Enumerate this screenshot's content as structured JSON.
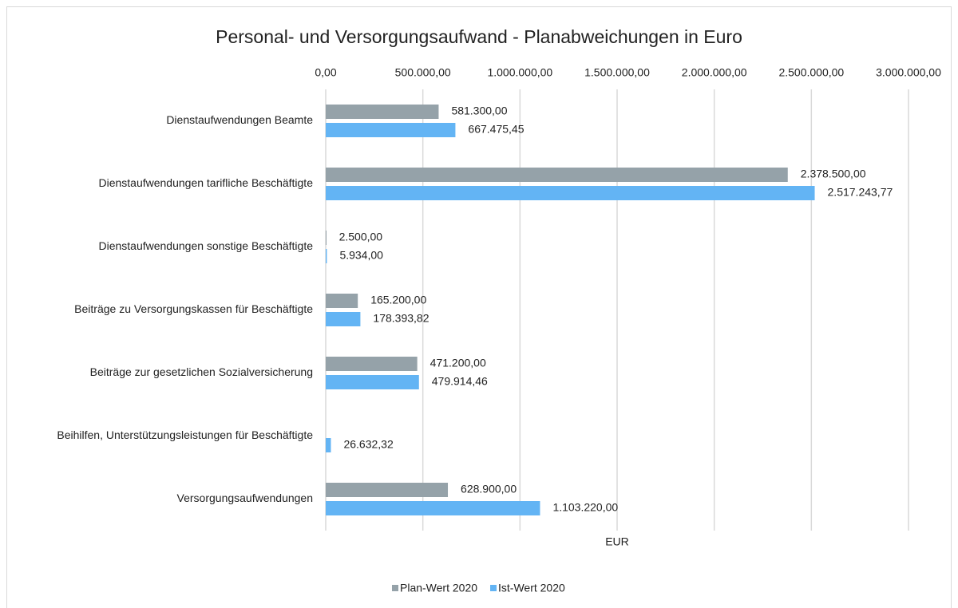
{
  "chart_data": {
    "type": "hbar",
    "title": "Personal- und Versorgungsaufwand - Planabweichungen in Euro",
    "x_label": "EUR",
    "categories": [
      "Dienstaufwendungen Beamte",
      "Dienstaufwendungen tarifliche Beschäftigte",
      "Dienstaufwendungen sonstige Beschäftigte",
      "Beiträge zu Versorgungskassen für Beschäftigte",
      "Beiträge zur gesetzlichen Sozialversicherung",
      "Beihilfen, Unterstützungsleistungen für Beschäftigte",
      "Versorgungsaufwendungen"
    ],
    "series": [
      {
        "name": "Plan-Wert 2020",
        "color": "#95a2a9",
        "values": [
          581300,
          2378500,
          2500,
          165200,
          471200,
          null,
          628900
        ],
        "value_labels": [
          "581.300,00",
          "2.378.500,00",
          "2.500,00",
          "165.200,00",
          "471.200,00",
          null,
          "628.900,00"
        ]
      },
      {
        "name": "Ist-Wert 2020",
        "color": "#63b4f4",
        "values": [
          667475.45,
          2517243.77,
          5934,
          178393.82,
          479914.46,
          26632.32,
          1103220
        ],
        "value_labels": [
          "667.475,45",
          "2.517.243,77",
          "5.934,00",
          "178.393,82",
          "479.914,46",
          "26.632,32",
          "1.103.220,00"
        ]
      }
    ],
    "xlim": [
      0,
      3000000
    ],
    "xticks": [
      {
        "value": 0,
        "label": "0,00"
      },
      {
        "value": 500000,
        "label": "500.000,00"
      },
      {
        "value": 1000000,
        "label": "1.000.000,00"
      },
      {
        "value": 1500000,
        "label": "1.500.000,00"
      },
      {
        "value": 2000000,
        "label": "2.000.000,00"
      },
      {
        "value": 2500000,
        "label": "2.500.000,00"
      },
      {
        "value": 3000000,
        "label": "3.000.000,00"
      }
    ],
    "grid": true,
    "legend": "bottom"
  }
}
